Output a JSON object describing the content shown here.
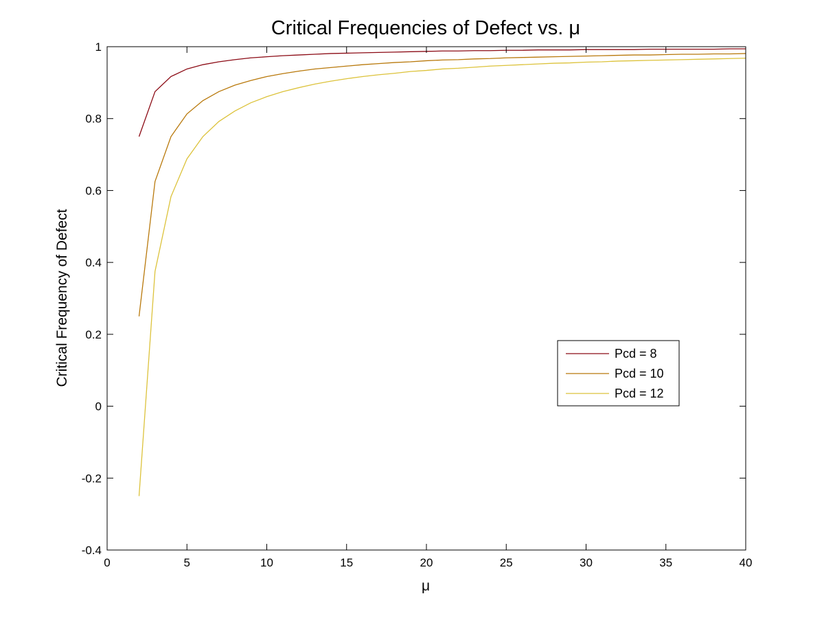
{
  "chart_data": {
    "type": "line",
    "title": "Critical Frequencies of Defect vs. μ",
    "xlabel": "μ",
    "ylabel": "Critical Frequency of Defect",
    "xlim": [
      0,
      40
    ],
    "ylim": [
      -0.4,
      1
    ],
    "xticks": [
      0,
      5,
      10,
      15,
      20,
      25,
      30,
      35,
      40
    ],
    "yticks": [
      -0.4,
      -0.2,
      0,
      0.2,
      0.4,
      0.6,
      0.8,
      1
    ],
    "xtick_labels": [
      "0",
      "5",
      "10",
      "15",
      "20",
      "25",
      "30",
      "35",
      "40"
    ],
    "ytick_labels": [
      "-0.4",
      "-0.2",
      "0",
      "0.2",
      "0.4",
      "0.6",
      "0.8",
      "1"
    ],
    "grid": false,
    "legend_position": "lower-right",
    "x": [
      2,
      3,
      4,
      5,
      6,
      7,
      8,
      9,
      10,
      11,
      12,
      13,
      14,
      15,
      16,
      17,
      18,
      19,
      20,
      21,
      22,
      23,
      24,
      25,
      26,
      27,
      28,
      29,
      30,
      31,
      32,
      33,
      34,
      35,
      36,
      37,
      38,
      39,
      40
    ],
    "series": [
      {
        "name": "Pcd = 8",
        "color": "#8b0a14",
        "values": [
          0.75,
          0.875,
          0.917,
          0.938,
          0.95,
          0.958,
          0.964,
          0.969,
          0.972,
          0.975,
          0.977,
          0.979,
          0.981,
          0.982,
          0.983,
          0.984,
          0.985,
          0.986,
          0.987,
          0.988,
          0.988,
          0.989,
          0.989,
          0.99,
          0.99,
          0.991,
          0.991,
          0.991,
          0.992,
          0.992,
          0.992,
          0.992,
          0.993,
          0.993,
          0.993,
          0.993,
          0.993,
          0.994,
          0.994
        ]
      },
      {
        "name": "Pcd = 10",
        "color": "#b8780a",
        "values": [
          0.25,
          0.625,
          0.75,
          0.813,
          0.85,
          0.875,
          0.893,
          0.906,
          0.917,
          0.925,
          0.932,
          0.938,
          0.942,
          0.946,
          0.95,
          0.953,
          0.956,
          0.958,
          0.961,
          0.963,
          0.964,
          0.966,
          0.967,
          0.969,
          0.97,
          0.971,
          0.972,
          0.973,
          0.974,
          0.975,
          0.976,
          0.977,
          0.977,
          0.978,
          0.979,
          0.979,
          0.98,
          0.98,
          0.981
        ]
      },
      {
        "name": "Pcd = 12",
        "color": "#dcc23a",
        "values": [
          -0.25,
          0.375,
          0.583,
          0.688,
          0.75,
          0.792,
          0.821,
          0.844,
          0.861,
          0.875,
          0.886,
          0.896,
          0.904,
          0.911,
          0.917,
          0.922,
          0.926,
          0.931,
          0.934,
          0.938,
          0.94,
          0.943,
          0.946,
          0.948,
          0.95,
          0.952,
          0.954,
          0.955,
          0.957,
          0.958,
          0.96,
          0.961,
          0.962,
          0.963,
          0.964,
          0.965,
          0.966,
          0.967,
          0.968
        ]
      }
    ]
  }
}
